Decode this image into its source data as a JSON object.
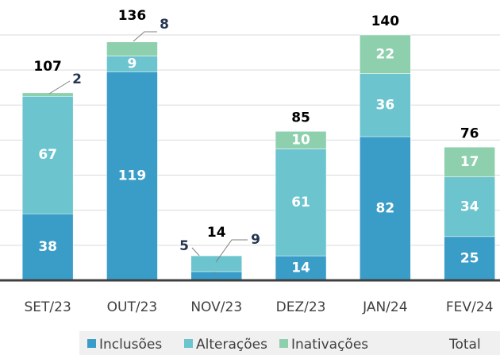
{
  "chart_data": {
    "type": "stacked_bar",
    "categories": [
      "SET/23",
      "OUT/23",
      "NOV/23",
      "DEZ/23",
      "JAN/24",
      "FEV/24"
    ],
    "series": [
      {
        "name": "Inclusões",
        "color": "#3a9dc8",
        "values": [
          38,
          119,
          5,
          14,
          82,
          25
        ]
      },
      {
        "name": "Alterações",
        "color": "#6cc4cf",
        "values": [
          67,
          9,
          9,
          61,
          36,
          34
        ]
      },
      {
        "name": "Inativações",
        "color": "#8ed0ae",
        "values": [
          2,
          8,
          0,
          10,
          22,
          17
        ]
      },
      {
        "name": "Total",
        "values": [
          107,
          136,
          14,
          85,
          140,
          76
        ]
      }
    ],
    "ylim": [
      0,
      140
    ],
    "yticks": [
      0,
      20,
      40,
      60,
      80,
      100,
      120,
      140
    ],
    "grid": true
  }
}
